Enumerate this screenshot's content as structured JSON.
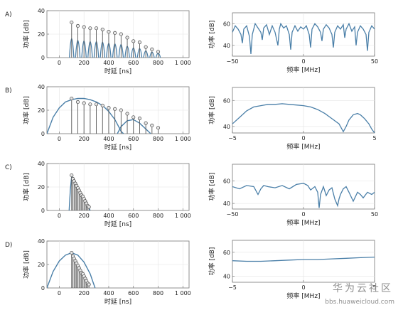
{
  "watermark": {
    "title": "华为云社区",
    "url": "bbs.huaweicloud.com"
  },
  "chart_data": [
    {
      "panel": "A)",
      "type": "stem",
      "xlabel": "时延 [ns]",
      "ylabel": "功率 [dB]",
      "xlim": [
        -100,
        1050
      ],
      "ylim": [
        0,
        40
      ],
      "xticks": [
        0,
        200,
        400,
        600,
        800,
        1000
      ],
      "xticklabels": [
        "0",
        "200",
        "400",
        "600",
        "800",
        "1 000"
      ],
      "yticks": [
        0,
        20,
        40
      ],
      "yticklabels": [
        "0",
        "20",
        "40"
      ],
      "points": [
        [
          100,
          30
        ],
        [
          150,
          27
        ],
        [
          200,
          26
        ],
        [
          250,
          25
        ],
        [
          300,
          25
        ],
        [
          350,
          24
        ],
        [
          400,
          22
        ],
        [
          450,
          21
        ],
        [
          500,
          20
        ],
        [
          550,
          17
        ],
        [
          600,
          14
        ],
        [
          650,
          13
        ],
        [
          700,
          9
        ],
        [
          750,
          7
        ],
        [
          800,
          5
        ]
      ],
      "pulse_width": 18
    },
    {
      "panel": "A)",
      "type": "line",
      "xlabel": "频率 [MHz]",
      "ylabel": "功率 [dB]",
      "xlim": [
        -50,
        50
      ],
      "ylim": [
        30,
        70
      ],
      "xticks": [
        -50,
        0,
        50
      ],
      "xticklabels": [
        "−50",
        "0",
        "50"
      ],
      "yticks": [
        40,
        60
      ],
      "yticklabels": [
        "40",
        "60"
      ],
      "x": [
        -50,
        -48,
        -46,
        -44,
        -43,
        -42,
        -40,
        -38,
        -37,
        -36,
        -34,
        -32,
        -30,
        -29,
        -28,
        -26,
        -24,
        -22,
        -20,
        -18,
        -17,
        -16,
        -14,
        -12,
        -10,
        -9,
        -8,
        -6,
        -4,
        -2,
        0,
        2,
        4,
        5,
        6,
        8,
        10,
        12,
        13,
        14,
        16,
        18,
        20,
        21,
        22,
        24,
        26,
        28,
        29,
        30,
        32,
        34,
        36,
        37,
        38,
        40,
        42,
        44,
        45,
        46,
        48,
        50
      ],
      "y": [
        52,
        58,
        55,
        50,
        42,
        55,
        58,
        48,
        32,
        50,
        60,
        56,
        52,
        45,
        56,
        59,
        50,
        58,
        52,
        40,
        55,
        60,
        56,
        58,
        50,
        36,
        52,
        58,
        53,
        57,
        55,
        58,
        50,
        38,
        55,
        60,
        57,
        52,
        44,
        55,
        59,
        56,
        50,
        38,
        52,
        58,
        55,
        59,
        47,
        55,
        60,
        53,
        57,
        40,
        52,
        58,
        55,
        50,
        35,
        52,
        58,
        55
      ]
    },
    {
      "panel": "B)",
      "type": "stem",
      "xlabel": "时延 [ns]",
      "ylabel": "功率 [dB]",
      "xlim": [
        -100,
        1050
      ],
      "ylim": [
        0,
        40
      ],
      "xticks": [
        0,
        200,
        400,
        600,
        800,
        1000
      ],
      "xticklabels": [
        "0",
        "200",
        "400",
        "600",
        "800",
        "1 000"
      ],
      "yticks": [
        0,
        20,
        40
      ],
      "yticklabels": [
        "0",
        "20",
        "40"
      ],
      "points": [
        [
          100,
          30
        ],
        [
          150,
          27
        ],
        [
          200,
          26
        ],
        [
          250,
          25
        ],
        [
          300,
          25
        ],
        [
          350,
          24
        ],
        [
          400,
          22
        ],
        [
          450,
          21
        ],
        [
          500,
          20
        ],
        [
          550,
          17
        ],
        [
          600,
          14
        ],
        [
          650,
          13
        ],
        [
          700,
          9
        ],
        [
          750,
          7
        ],
        [
          800,
          5
        ]
      ],
      "envelopes": [
        {
          "x": [
            -100,
            -50,
            0,
            50,
            100,
            150,
            200,
            250,
            300,
            350,
            400,
            450,
            480,
            500,
            520
          ],
          "y": [
            0,
            14,
            22,
            27,
            29,
            30,
            30,
            29,
            27,
            24,
            19,
            12,
            6,
            2,
            0
          ]
        },
        {
          "x": [
            470,
            500,
            550,
            600,
            650,
            700,
            740
          ],
          "y": [
            0,
            6,
            11,
            12,
            9,
            4,
            0
          ]
        }
      ]
    },
    {
      "panel": "B)",
      "type": "line",
      "xlabel": "频率 [MHz]",
      "ylabel": "功率 [dB]",
      "xlim": [
        -5,
        5
      ],
      "ylim": [
        35,
        70
      ],
      "xticks": [
        -5,
        0,
        5
      ],
      "xticklabels": [
        "−5",
        "0",
        "5"
      ],
      "yticks": [
        40,
        60
      ],
      "yticklabels": [
        "40",
        "60"
      ],
      "x": [
        -5,
        -4.5,
        -4,
        -3.5,
        -3,
        -2.5,
        -2,
        -1.5,
        -1,
        -0.5,
        0,
        0.5,
        1,
        1.5,
        2,
        2.5,
        2.8,
        3,
        3.2,
        3.5,
        3.8,
        4,
        4.3,
        4.6,
        4.8,
        5
      ],
      "y": [
        42,
        47,
        52,
        55,
        56,
        57,
        57,
        57.5,
        57,
        56.5,
        56,
        55,
        53,
        50,
        46,
        42,
        36,
        40,
        45,
        49,
        50,
        49,
        46,
        42,
        38,
        35
      ]
    },
    {
      "panel": "C)",
      "type": "stem",
      "xlabel": "时延 [ns]",
      "ylabel": "功率 [dB]",
      "xlim": [
        -100,
        1050
      ],
      "ylim": [
        0,
        40
      ],
      "xticks": [
        0,
        200,
        400,
        600,
        800,
        1000
      ],
      "xticklabels": [
        "0",
        "200",
        "400",
        "600",
        "800",
        "1 000"
      ],
      "yticks": [
        0,
        20,
        40
      ],
      "yticklabels": [
        "0",
        "20",
        "40"
      ],
      "points": [
        [
          100,
          30
        ],
        [
          110,
          27
        ],
        [
          120,
          25
        ],
        [
          130,
          23
        ],
        [
          140,
          21
        ],
        [
          150,
          19
        ],
        [
          160,
          17
        ],
        [
          170,
          15
        ],
        [
          180,
          13
        ],
        [
          190,
          12
        ],
        [
          200,
          10
        ],
        [
          210,
          8
        ],
        [
          220,
          6
        ],
        [
          230,
          4
        ],
        [
          240,
          3
        ]
      ],
      "envelopes": [
        {
          "x": [
            80,
            90,
            100,
            110,
            130,
            150,
            170,
            190,
            210,
            230,
            250
          ],
          "y": [
            0,
            18,
            29,
            28,
            24,
            20,
            16,
            12,
            8,
            4,
            0
          ]
        }
      ]
    },
    {
      "panel": "C)",
      "type": "line",
      "xlabel": "频率 [MHz]",
      "ylabel": "功率 [dB]",
      "xlim": [
        -50,
        50
      ],
      "ylim": [
        35,
        75
      ],
      "xticks": [
        -50,
        0,
        50
      ],
      "xticklabels": [
        "−50",
        "0",
        "50"
      ],
      "yticks": [
        40,
        60
      ],
      "yticklabels": [
        "40",
        "60"
      ],
      "x": [
        -50,
        -45,
        -40,
        -35,
        -32,
        -30,
        -28,
        -25,
        -20,
        -15,
        -10,
        -5,
        0,
        3,
        5,
        8,
        10,
        11,
        12,
        14,
        16,
        18,
        20,
        22,
        24,
        25,
        26,
        28,
        30,
        32,
        35,
        38,
        40,
        42,
        45,
        48,
        50
      ],
      "y": [
        55,
        53,
        56,
        55,
        48,
        53,
        56,
        55,
        54,
        56,
        53,
        57,
        58,
        56,
        52,
        55,
        50,
        36,
        48,
        55,
        47,
        52,
        54,
        44,
        38,
        44,
        48,
        53,
        55,
        50,
        42,
        50,
        48,
        45,
        50,
        48,
        50
      ]
    },
    {
      "panel": "D)",
      "type": "stem",
      "xlabel": "时延 [ns]",
      "ylabel": "功率 [dB]",
      "xlim": [
        -100,
        1050
      ],
      "ylim": [
        0,
        40
      ],
      "xticks": [
        0,
        200,
        400,
        600,
        800,
        1000
      ],
      "xticklabels": [
        "0",
        "200",
        "400",
        "600",
        "800",
        "1 000"
      ],
      "yticks": [
        0,
        20,
        40
      ],
      "yticklabels": [
        "0",
        "20",
        "40"
      ],
      "points": [
        [
          100,
          30
        ],
        [
          110,
          27
        ],
        [
          120,
          25
        ],
        [
          130,
          23
        ],
        [
          140,
          21
        ],
        [
          150,
          19
        ],
        [
          160,
          17
        ],
        [
          170,
          15
        ],
        [
          180,
          13
        ],
        [
          190,
          12
        ],
        [
          200,
          10
        ],
        [
          210,
          8
        ],
        [
          220,
          6
        ],
        [
          230,
          4
        ],
        [
          240,
          3
        ]
      ],
      "envelopes": [
        {
          "x": [
            -100,
            -50,
            0,
            50,
            100,
            150,
            200,
            250,
            270,
            290
          ],
          "y": [
            0,
            14,
            23,
            28,
            30,
            28,
            22,
            12,
            6,
            0
          ]
        }
      ]
    },
    {
      "panel": "D)",
      "type": "line",
      "xlabel": "频率 [MHz]",
      "ylabel": "功率 [dB]",
      "xlim": [
        -5,
        5
      ],
      "ylim": [
        35,
        70
      ],
      "xticks": [
        -5,
        0,
        5
      ],
      "xticklabels": [
        "−5",
        "0",
        "5"
      ],
      "yticks": [
        40,
        60
      ],
      "yticklabels": [
        "40",
        "60"
      ],
      "x": [
        -5,
        -4,
        -3,
        -2,
        -1,
        0,
        1,
        2,
        3,
        4,
        5
      ],
      "y": [
        53,
        52.5,
        52.5,
        53,
        53.5,
        54,
        54,
        54.5,
        55,
        55.5,
        56
      ]
    }
  ]
}
